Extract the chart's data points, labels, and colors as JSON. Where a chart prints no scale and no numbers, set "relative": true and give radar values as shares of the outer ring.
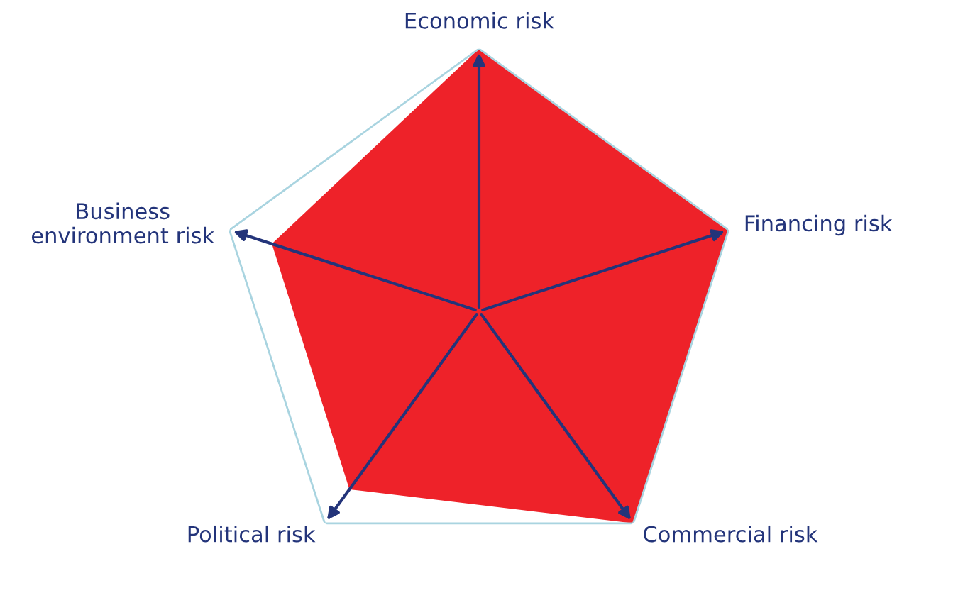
{
  "chart_data": {
    "type": "radar",
    "relative": true,
    "categories": [
      "Economic risk",
      "Financing risk",
      "Commercial risk",
      "Political risk",
      "Business\nenvironment risk"
    ],
    "series": [
      {
        "color": "#ee2229",
        "values": [
          1,
          1,
          1,
          0.84,
          0.83
        ]
      }
    ]
  }
}
